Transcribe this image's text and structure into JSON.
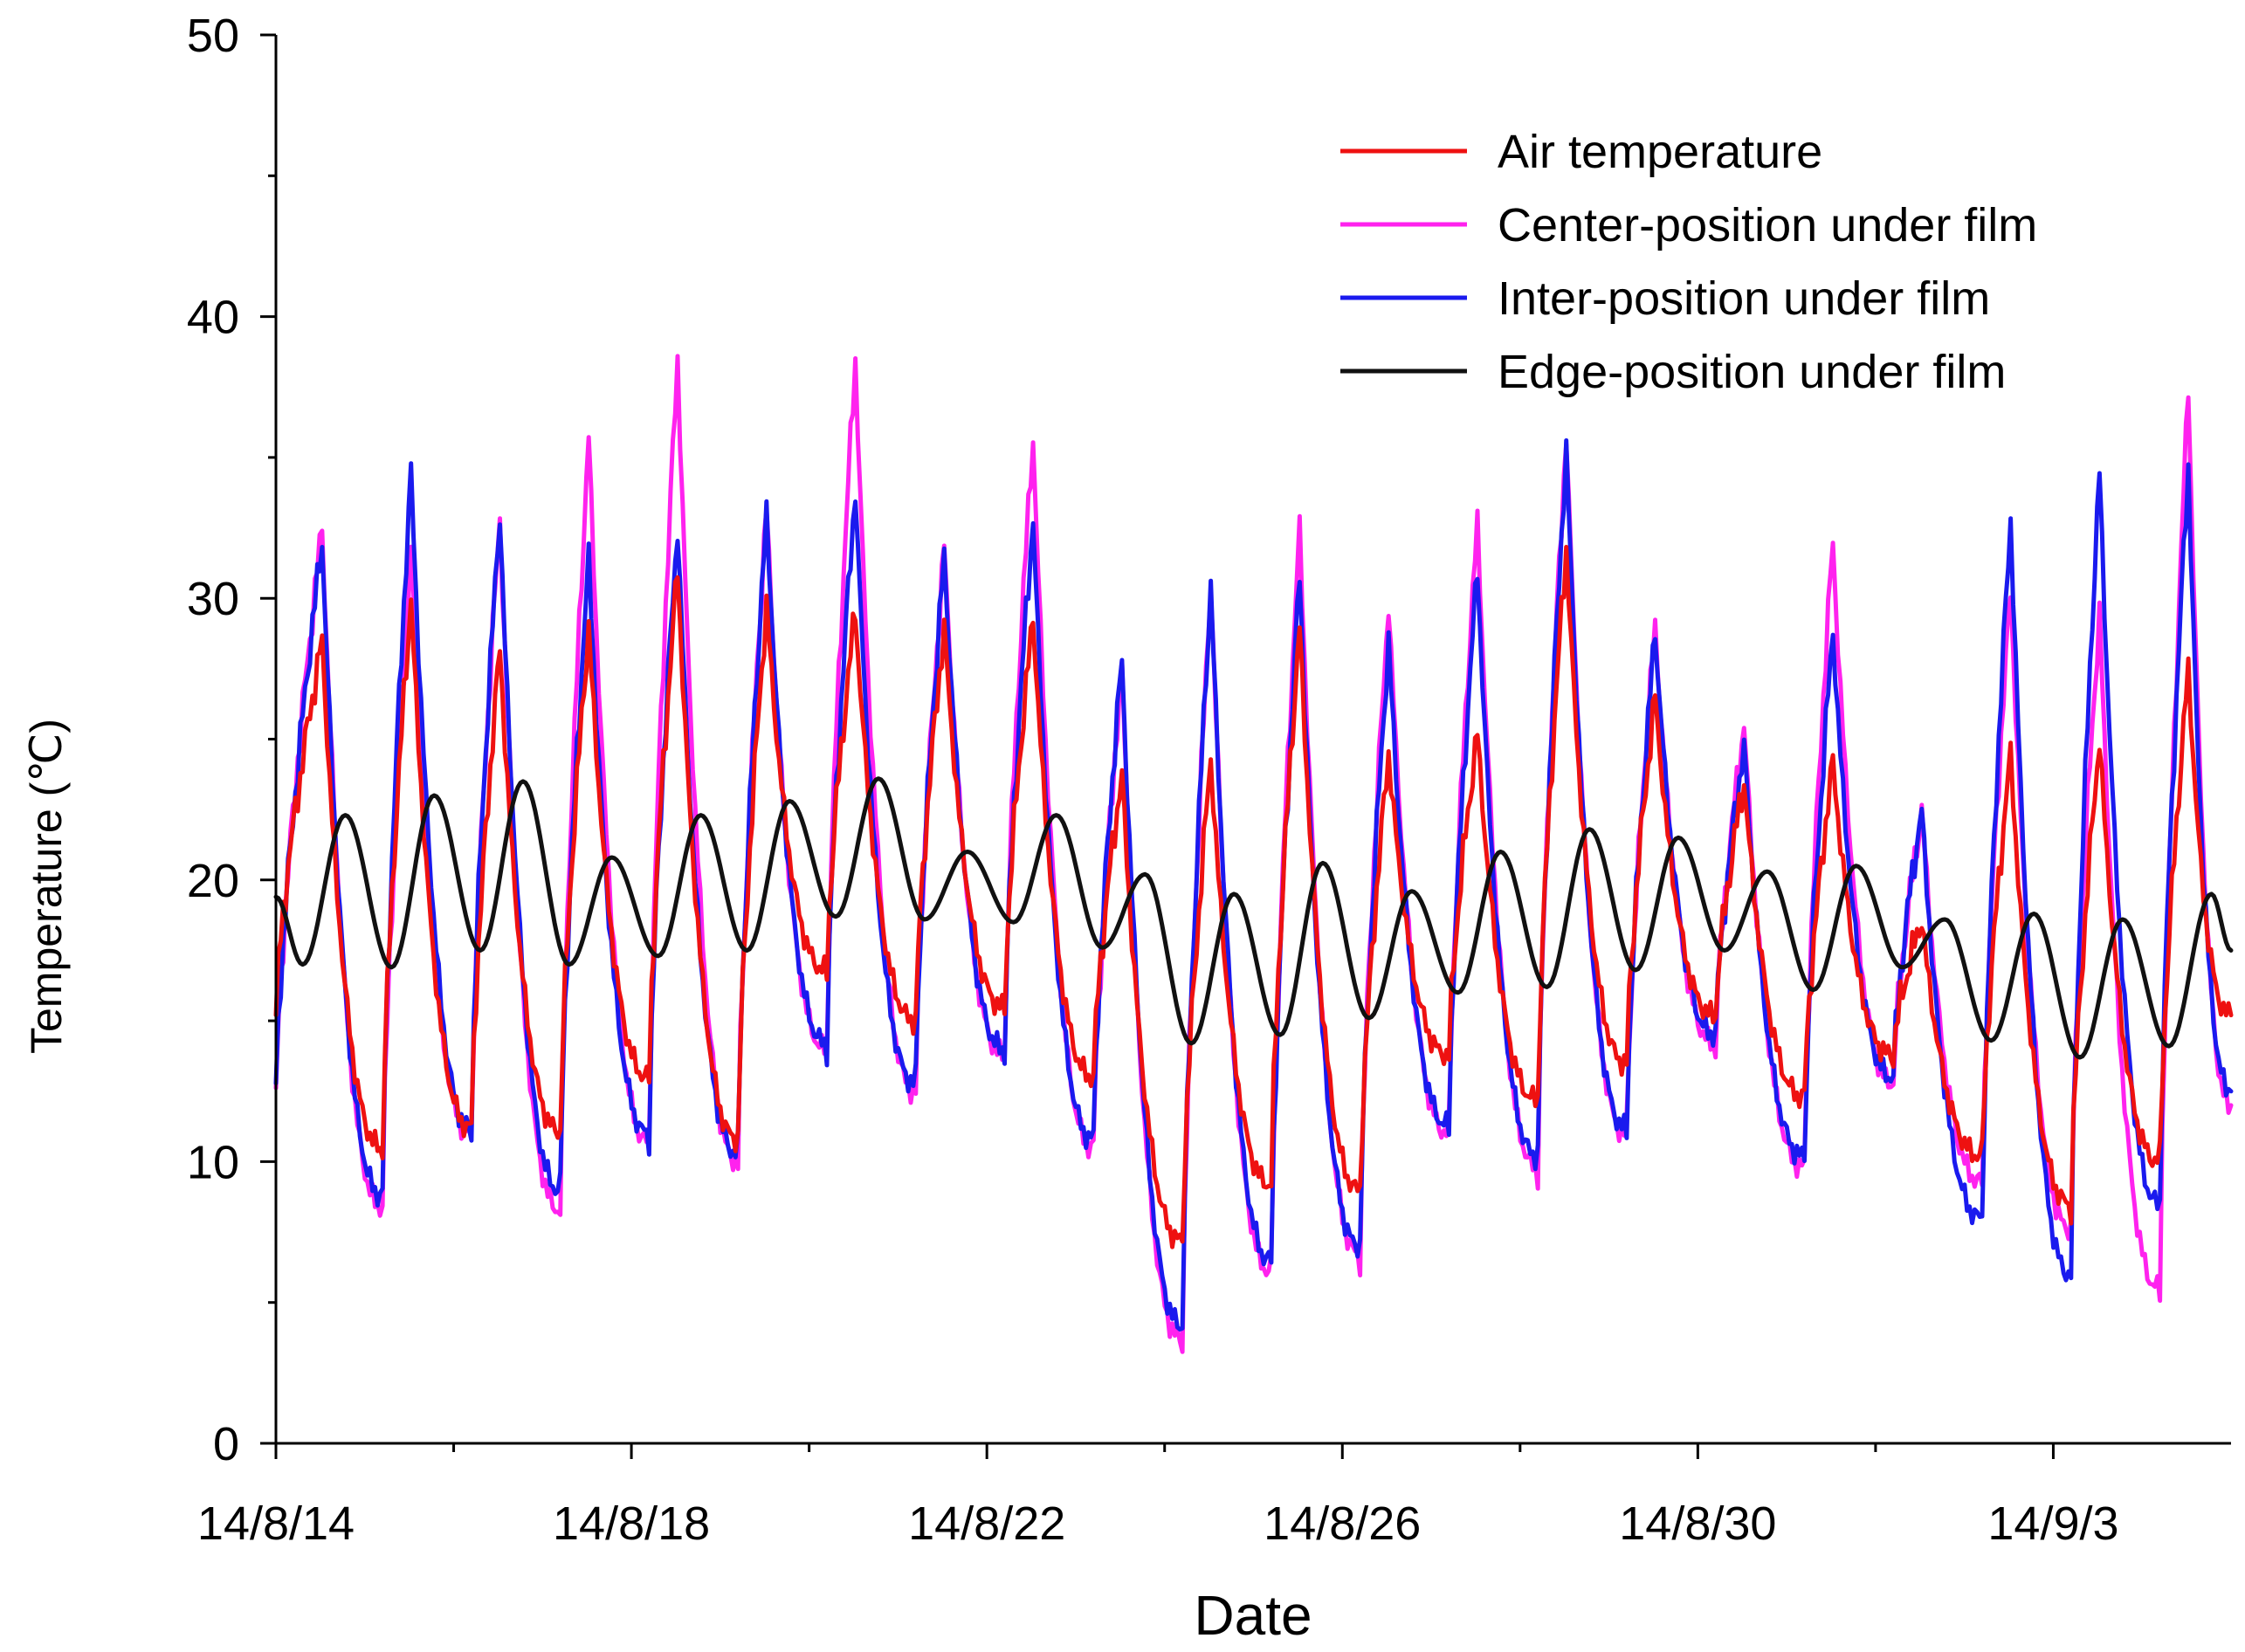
{
  "chart_data": {
    "type": "line",
    "title": "",
    "xlabel": "Date",
    "ylabel": "Temperature (℃)",
    "ylim": [
      0,
      50
    ],
    "xlim_days": [
      0,
      22
    ],
    "yticks": [
      0,
      10,
      20,
      30,
      40,
      50
    ],
    "ytick_labels": [
      "0",
      "10",
      "20",
      "30",
      "40",
      "50"
    ],
    "xticks_days": [
      0,
      4,
      8,
      12,
      16,
      20
    ],
    "xtick_labels": [
      "14/8/14",
      "14/8/18",
      "14/8/22",
      "14/8/26",
      "14/8/30",
      "14/9/3"
    ],
    "legend_position": "top-right",
    "grid": false,
    "series": [
      {
        "name": "Air temperature",
        "color": "#ee1111",
        "daily_max": [
          28.5,
          30.0,
          28.2,
          29.0,
          31.0,
          29.8,
          29.5,
          29.0,
          29.3,
          23.8,
          24.3,
          29.0,
          24.5,
          25.2,
          31.8,
          26.5,
          23.5,
          24.2,
          18.6,
          24.5,
          25.0,
          27.5
        ],
        "daily_min": [
          15.2,
          10.5,
          11.2,
          11.1,
          13.0,
          10.8,
          16.8,
          15.0,
          15.5,
          13.0,
          7.2,
          9.2,
          9.0,
          13.8,
          12.2,
          13.5,
          15.2,
          12.3,
          13.8,
          10.2,
          8.5,
          10.0
        ],
        "end_value": 15.2
      },
      {
        "name": "Center-position under film",
        "color": "#ff22ee",
        "daily_max": [
          32.5,
          31.8,
          32.8,
          35.8,
          38.5,
          33.2,
          38.5,
          31.8,
          35.7,
          27.5,
          30.5,
          32.5,
          29.8,
          32.7,
          35.8,
          29.0,
          25.5,
          32.0,
          22.5,
          30.3,
          29.5,
          37.5
        ],
        "daily_min": [
          12.3,
          8.4,
          11.0,
          8.3,
          10.7,
          10.0,
          14.0,
          12.5,
          13.8,
          10.5,
          3.7,
          6.1,
          6.7,
          11.0,
          9.8,
          11.0,
          14.2,
          9.8,
          12.8,
          9.3,
          7.6,
          5.5
        ],
        "end_value": 12.0
      },
      {
        "name": "Inter-position under film",
        "color": "#1a1aee",
        "daily_max": [
          32.0,
          34.5,
          33.0,
          31.5,
          32.5,
          33.0,
          33.8,
          31.5,
          32.8,
          27.8,
          30.5,
          30.8,
          28.5,
          31.0,
          35.3,
          28.8,
          24.8,
          28.8,
          22.5,
          32.8,
          34.5,
          34.7
        ],
        "daily_min": [
          12.5,
          8.8,
          11.2,
          9.0,
          11.0,
          10.3,
          14.2,
          12.8,
          14.0,
          10.8,
          4.2,
          6.5,
          7.0,
          11.3,
          10.2,
          11.2,
          14.5,
          10.2,
          13.0,
          8.0,
          6.0,
          8.5
        ],
        "end_value": 12.5
      },
      {
        "name": "Edge-position under film",
        "color": "#111111",
        "daily_max": [
          22.3,
          23.0,
          23.5,
          20.8,
          22.3,
          22.8,
          23.6,
          21.0,
          22.3,
          20.2,
          19.5,
          20.6,
          19.6,
          21.0,
          21.8,
          21.5,
          20.3,
          20.5,
          18.6,
          18.8,
          18.6,
          19.5
        ],
        "daily_min": [
          17.0,
          16.9,
          17.5,
          17.0,
          17.3,
          17.5,
          18.7,
          18.6,
          18.5,
          17.6,
          14.2,
          14.5,
          15.1,
          16.0,
          16.2,
          16.8,
          17.5,
          16.1,
          16.9,
          14.3,
          13.7,
          14.1
        ],
        "start_value": 19.4,
        "end_value": 17.5
      }
    ]
  }
}
